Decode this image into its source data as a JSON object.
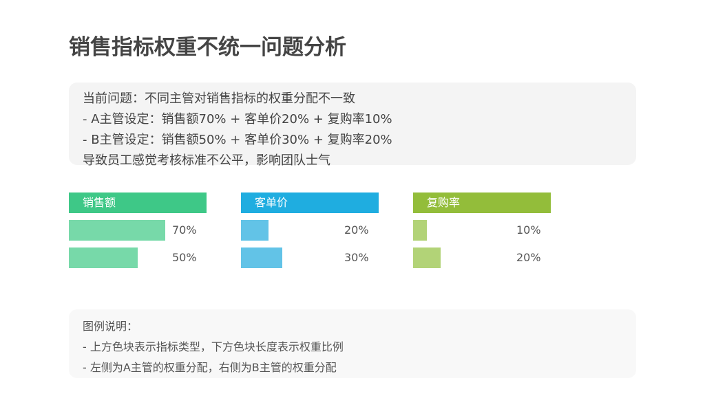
{
  "title": "销售指标权重不统一问题分析",
  "problem": {
    "lines": [
      "当前问题：不同主管对销售指标的权重分配不一致",
      "- A主管设定：销售额70% + 客单价20% + 复购率10%",
      "- B主管设定：销售额50% + 客单价30% + 复购率20%",
      "导致员工感觉考核标准不公平，影响团队士气"
    ]
  },
  "metrics": [
    {
      "name": "销售额",
      "header_color": "#3ec887",
      "bar_color": "#77d9a9",
      "a_value": 70,
      "a_label": "70%",
      "b_value": 50,
      "b_label": "50%"
    },
    {
      "name": "客单价",
      "header_color": "#1fade0",
      "bar_color": "#62c3e7",
      "a_value": 20,
      "a_label": "20%",
      "b_value": 30,
      "b_label": "30%"
    },
    {
      "name": "复购率",
      "header_color": "#93bd3a",
      "bar_color": "#b2d377",
      "a_value": 10,
      "a_label": "10%",
      "b_value": 20,
      "b_label": "20%"
    }
  ],
  "legend": {
    "title": "图例说明：",
    "items": [
      "- 上方色块表示指标类型，下方色块长度表示权重比例",
      "- 左侧为A主管的权重分配，右侧为B主管的权重分配"
    ]
  }
}
